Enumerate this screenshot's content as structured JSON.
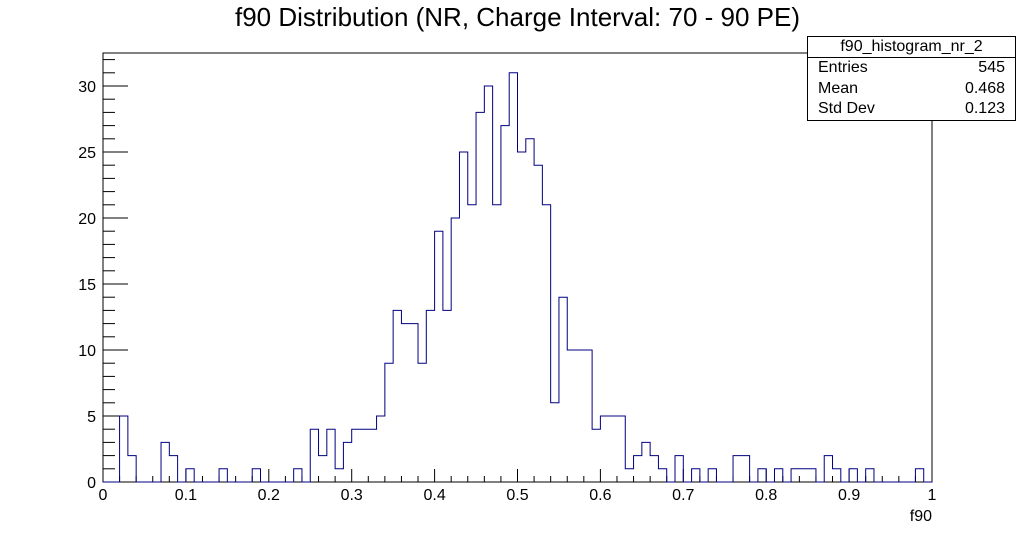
{
  "chart_data": {
    "type": "histogram",
    "title": "f90 Distribution (NR, Charge Interval: 70 - 90 PE)",
    "xlabel": "f90",
    "ylabel": "",
    "xlim": [
      0,
      1
    ],
    "ylim": [
      0,
      32.5
    ],
    "bin_width": 0.01,
    "bin_start": 0.0,
    "x_ticks": [
      "0",
      "0.1",
      "0.2",
      "0.3",
      "0.4",
      "0.5",
      "0.6",
      "0.7",
      "0.8",
      "0.9",
      "1"
    ],
    "y_ticks": [
      "0",
      "5",
      "10",
      "15",
      "20",
      "25",
      "30"
    ],
    "line_color": "#000080",
    "values": [
      0,
      0,
      5,
      2,
      0,
      0,
      0,
      3,
      2,
      0,
      1,
      0,
      0,
      0,
      1,
      0,
      0,
      0,
      1,
      0,
      0,
      0,
      0,
      1,
      0,
      4,
      2,
      4,
      1,
      3,
      4,
      4,
      4,
      5,
      9,
      13,
      12,
      12,
      9,
      13,
      19,
      13,
      20,
      25,
      21,
      28,
      30,
      21,
      27,
      31,
      25,
      26,
      24,
      21,
      6,
      14,
      10,
      10,
      10,
      4,
      5,
      5,
      5,
      1,
      2,
      3,
      2,
      1,
      0,
      2,
      0,
      1,
      0,
      1,
      0,
      0,
      2,
      2,
      0,
      1,
      0,
      1,
      0,
      1,
      1,
      1,
      0,
      2,
      1,
      0,
      1,
      0,
      1,
      0,
      0,
      0,
      0,
      0,
      1,
      0
    ],
    "stats": {
      "name": "f90_histogram_nr_2",
      "rows": [
        {
          "label": "Entries",
          "value": "545"
        },
        {
          "label": "Mean",
          "value": "0.468"
        },
        {
          "label": "Std Dev",
          "value": "0.123"
        }
      ]
    }
  }
}
